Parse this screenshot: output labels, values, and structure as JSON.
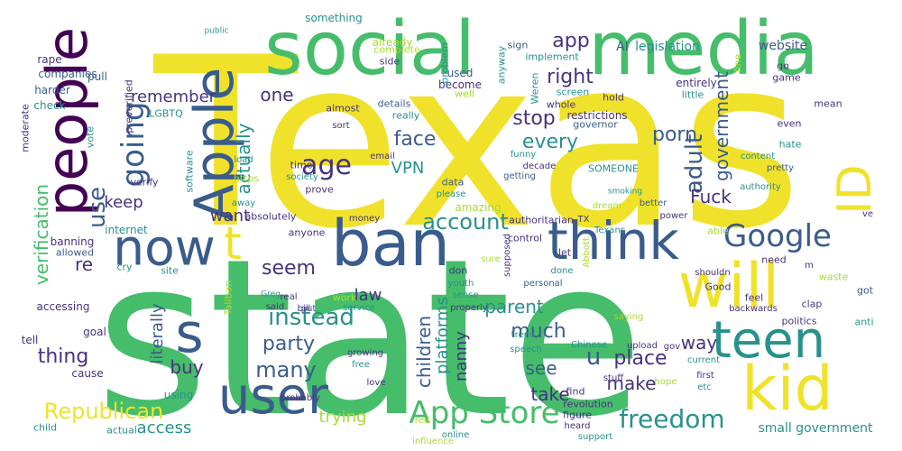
{
  "palette": {
    "yellow": "#f0e22a",
    "green": "#45bd6a",
    "teal": "#28918d",
    "blue": "#3a5c8c",
    "indigo": "#47327f",
    "purple": "#440154",
    "lime": "#a8db34"
  },
  "words": [
    {
      "text": "Texas",
      "color": "#f0e22a"
    },
    {
      "text": "state",
      "color": "#45bd6a"
    },
    {
      "text": "social",
      "color": "#45bd6a"
    },
    {
      "text": "media",
      "color": "#45bd6a"
    },
    {
      "text": "people",
      "color": "#440154"
    },
    {
      "text": "Apple",
      "color": "#3a5c8c"
    },
    {
      "text": "now",
      "color": "#3a5c8c"
    },
    {
      "text": "ban",
      "color": "#3a5c8c"
    },
    {
      "text": "think",
      "color": "#3a5c8c"
    },
    {
      "text": "will",
      "color": "#f0e22a"
    },
    {
      "text": "kid",
      "color": "#f0e22a"
    },
    {
      "text": "teen",
      "color": "#28918d"
    },
    {
      "text": "user",
      "color": "#3a5c8c"
    },
    {
      "text": "App Store",
      "color": "#45bd6a"
    },
    {
      "text": "Google",
      "color": "#3a5c8c"
    },
    {
      "text": "ID",
      "color": "#f0e22a"
    },
    {
      "text": "s",
      "color": "#3a5c8c"
    },
    {
      "text": "t",
      "color": "#f0e22a"
    },
    {
      "text": "going",
      "color": "#3a5c8c"
    },
    {
      "text": "freedom",
      "color": "#28918d"
    },
    {
      "text": "Republican",
      "color": "#f0e22a"
    },
    {
      "text": "age",
      "color": "#47327f"
    },
    {
      "text": "account",
      "color": "#28918d"
    },
    {
      "text": "porn",
      "color": "#3a5c8c"
    },
    {
      "text": "adult",
      "color": "#3a5c8c"
    },
    {
      "text": "use",
      "color": "#3a5c8c"
    },
    {
      "text": "instead",
      "color": "#28918d"
    },
    {
      "text": "party",
      "color": "#3a5c8c"
    },
    {
      "text": "many",
      "color": "#3a5c8c"
    },
    {
      "text": "much",
      "color": "#3a5c8c"
    },
    {
      "text": "thing",
      "color": "#47327f"
    },
    {
      "text": "seem",
      "color": "#47327f"
    },
    {
      "text": "actually",
      "color": "#28918d"
    },
    {
      "text": "stop",
      "color": "#47327f"
    },
    {
      "text": "every",
      "color": "#28918d"
    },
    {
      "text": "face",
      "color": "#3a5c8c"
    },
    {
      "text": "government",
      "color": "#3a5c8c"
    },
    {
      "text": "right",
      "color": "#47327f"
    },
    {
      "text": "app",
      "color": "#47327f"
    },
    {
      "text": "remember",
      "color": "#47327f"
    },
    {
      "text": "one",
      "color": "#47327f"
    },
    {
      "text": "verification",
      "color": "#45bd6a"
    },
    {
      "text": "literally",
      "color": "#3a5c8c"
    },
    {
      "text": "children",
      "color": "#3a5c8c"
    },
    {
      "text": "platforms",
      "color": "#28918d"
    },
    {
      "text": "nanny",
      "color": "#47327f"
    },
    {
      "text": "parent",
      "color": "#28918d"
    },
    {
      "text": "place",
      "color": "#47327f"
    },
    {
      "text": "u",
      "color": "#3a5c8c"
    },
    {
      "text": "way",
      "color": "#47327f"
    },
    {
      "text": "Fuck",
      "color": "#47327f"
    },
    {
      "text": "make",
      "color": "#47327f"
    },
    {
      "text": "take",
      "color": "#47327f"
    },
    {
      "text": "see",
      "color": "#3a5c8c"
    },
    {
      "text": "buy",
      "color": "#47327f"
    },
    {
      "text": "access",
      "color": "#28918d"
    },
    {
      "text": "trying",
      "color": "#a8db34"
    },
    {
      "text": "want",
      "color": "#47327f"
    },
    {
      "text": "keep",
      "color": "#47327f"
    },
    {
      "text": "VPN",
      "color": "#28918d"
    },
    {
      "text": "law",
      "color": "#47327f"
    },
    {
      "text": "re",
      "color": "#47327f"
    },
    {
      "text": "small government",
      "color": "#28918d"
    },
    {
      "text": "legislation",
      "color": "#28918d"
    },
    {
      "text": "website",
      "color": "#3a5c8c"
    },
    {
      "text": "AI",
      "color": "#3a5c8c"
    },
    {
      "text": "something",
      "color": "#28918d"
    },
    {
      "text": "already",
      "color": "#a8db34"
    },
    {
      "text": "companies",
      "color": "#3a5c8c"
    },
    {
      "text": "rape",
      "color": "#47327f"
    },
    {
      "text": "harder",
      "color": "#3a5c8c"
    },
    {
      "text": "pull",
      "color": "#3a5c8c"
    },
    {
      "text": "check",
      "color": "#28918d"
    },
    {
      "text": "LGBTQ",
      "color": "#28918d"
    },
    {
      "text": "preverified",
      "color": "#47327f"
    },
    {
      "text": "moderate",
      "color": "#47327f"
    },
    {
      "text": "vote",
      "color": "#28918d"
    },
    {
      "text": "verify",
      "color": "#47327f"
    },
    {
      "text": "software",
      "color": "#28918d"
    },
    {
      "text": "https",
      "color": "#a8db34"
    },
    {
      "text": "internet",
      "color": "#28918d"
    },
    {
      "text": "banning",
      "color": "#47327f"
    },
    {
      "text": "allowed",
      "color": "#3a5c8c"
    },
    {
      "text": "cry",
      "color": "#28918d"
    },
    {
      "text": "site",
      "color": "#28918d"
    },
    {
      "text": "Taliban",
      "color": "#a8db34"
    },
    {
      "text": "accessing",
      "color": "#47327f"
    },
    {
      "text": "goal",
      "color": "#47327f"
    },
    {
      "text": "tell",
      "color": "#47327f"
    },
    {
      "text": "cause",
      "color": "#47327f"
    },
    {
      "text": "using",
      "color": "#28918d"
    },
    {
      "text": "child",
      "color": "#28918d"
    },
    {
      "text": "actual",
      "color": "#28918d"
    },
    {
      "text": "almost",
      "color": "#47327f"
    },
    {
      "text": "details",
      "color": "#3a5c8c"
    },
    {
      "text": "really",
      "color": "#28918d"
    },
    {
      "text": "become",
      "color": "#47327f"
    },
    {
      "text": "used",
      "color": "#3a5c8c"
    },
    {
      "text": "problem",
      "color": "#28918d"
    },
    {
      "text": "complete",
      "color": "#a8db34"
    },
    {
      "text": "side",
      "color": "#47327f"
    },
    {
      "text": "anyway",
      "color": "#28918d"
    },
    {
      "text": "implement",
      "color": "#28918d"
    },
    {
      "text": "sign",
      "color": "#3a5c8c"
    },
    {
      "text": "screen",
      "color": "#28918d"
    },
    {
      "text": "Weren",
      "color": "#28918d"
    },
    {
      "text": "well",
      "color": "#a8db34"
    },
    {
      "text": "whole",
      "color": "#47327f"
    },
    {
      "text": "restrictions",
      "color": "#47327f"
    },
    {
      "text": "governor",
      "color": "#3a5c8c"
    },
    {
      "text": "hold",
      "color": "#47327f"
    },
    {
      "text": "entirely",
      "color": "#47327f"
    },
    {
      "text": "little",
      "color": "#28918d"
    },
    {
      "text": "even",
      "color": "#47327f"
    },
    {
      "text": "hate",
      "color": "#28918d"
    },
    {
      "text": "go",
      "color": "#47327f"
    },
    {
      "text": "game",
      "color": "#47327f"
    },
    {
      "text": "fine",
      "color": "#a8db34"
    },
    {
      "text": "mean",
      "color": "#47327f"
    },
    {
      "text": "public",
      "color": "#28918d"
    },
    {
      "text": "email",
      "color": "#47327f"
    },
    {
      "text": "load",
      "color": "#28918d"
    },
    {
      "text": "time",
      "color": "#47327f"
    },
    {
      "text": "society",
      "color": "#28918d"
    },
    {
      "text": "prove",
      "color": "#47327f"
    },
    {
      "text": "data",
      "color": "#3a5c8c"
    },
    {
      "text": "please",
      "color": "#28918d"
    },
    {
      "text": "getting",
      "color": "#3a5c8c"
    },
    {
      "text": "funny",
      "color": "#28918d"
    },
    {
      "text": "decade",
      "color": "#47327f"
    },
    {
      "text": "SOMEONE",
      "color": "#28918d"
    },
    {
      "text": "smoking",
      "color": "#28918d"
    },
    {
      "text": "better",
      "color": "#3a5c8c"
    },
    {
      "text": "dream",
      "color": "#a8db34"
    },
    {
      "text": "content",
      "color": "#28918d"
    },
    {
      "text": "pretty",
      "color": "#3a5c8c"
    },
    {
      "text": "authority",
      "color": "#28918d"
    },
    {
      "text": "sort",
      "color": "#47327f"
    },
    {
      "text": "amazing",
      "color": "#a8db34"
    },
    {
      "text": "authoritarian",
      "color": "#47327f"
    },
    {
      "text": "absolutely",
      "color": "#47327f"
    },
    {
      "text": "money",
      "color": "#47327f"
    },
    {
      "text": "away",
      "color": "#28918d"
    },
    {
      "text": "able",
      "color": "#a8db34"
    },
    {
      "text": "power",
      "color": "#47327f"
    },
    {
      "text": "TX",
      "color": "#47327f"
    },
    {
      "text": "Texans",
      "color": "#28918d"
    },
    {
      "text": "control",
      "color": "#47327f"
    },
    {
      "text": "supposed",
      "color": "#47327f"
    },
    {
      "text": "anyone",
      "color": "#47327f"
    },
    {
      "text": "don",
      "color": "#47327f"
    },
    {
      "text": "let",
      "color": "#47327f"
    },
    {
      "text": "done",
      "color": "#28918d"
    },
    {
      "text": "sure",
      "color": "#a8db34"
    },
    {
      "text": "Abbott",
      "color": "#a8db34"
    },
    {
      "text": "ve",
      "color": "#47327f"
    },
    {
      "text": "bill",
      "color": "#47327f"
    },
    {
      "text": "real",
      "color": "#47327f"
    },
    {
      "text": "put",
      "color": "#3a5c8c"
    },
    {
      "text": "said",
      "color": "#47327f"
    },
    {
      "text": "Greg",
      "color": "#28918d"
    },
    {
      "text": "work",
      "color": "#a8db34"
    },
    {
      "text": "youth",
      "color": "#28918d"
    },
    {
      "text": "sense",
      "color": "#28918d"
    },
    {
      "text": "service",
      "color": "#28918d"
    },
    {
      "text": "properly",
      "color": "#47327f"
    },
    {
      "text": "personal",
      "color": "#3a5c8c"
    },
    {
      "text": "saying",
      "color": "#a8db34"
    },
    {
      "text": "need",
      "color": "#47327f"
    },
    {
      "text": "Good",
      "color": "#47327f"
    },
    {
      "text": "shouldn",
      "color": "#47327f"
    },
    {
      "text": "waste",
      "color": "#a8db34"
    },
    {
      "text": "m",
      "color": "#47327f"
    },
    {
      "text": "got",
      "color": "#3a5c8c"
    },
    {
      "text": "feel",
      "color": "#47327f"
    },
    {
      "text": "clap",
      "color": "#47327f"
    },
    {
      "text": "politics",
      "color": "#47327f"
    },
    {
      "text": "anti",
      "color": "#28918d"
    },
    {
      "text": "backwards",
      "color": "#47327f"
    },
    {
      "text": "growing",
      "color": "#47327f"
    },
    {
      "text": "free",
      "color": "#28918d"
    },
    {
      "text": "speech",
      "color": "#28918d"
    },
    {
      "text": "trend",
      "color": "#28918d"
    },
    {
      "text": "Chinese",
      "color": "#28918d"
    },
    {
      "text": "upload",
      "color": "#47327f"
    },
    {
      "text": "gov",
      "color": "#47327f"
    },
    {
      "text": "current",
      "color": "#28918d"
    },
    {
      "text": "first",
      "color": "#47327f"
    },
    {
      "text": "love",
      "color": "#47327f"
    },
    {
      "text": "probably",
      "color": "#47327f"
    },
    {
      "text": "stuff",
      "color": "#47327f"
    },
    {
      "text": "hope",
      "color": "#a8db34"
    },
    {
      "text": "etc",
      "color": "#28918d"
    },
    {
      "text": "find",
      "color": "#47327f"
    },
    {
      "text": "revolution",
      "color": "#47327f"
    },
    {
      "text": "figure",
      "color": "#47327f"
    },
    {
      "text": "heard",
      "color": "#47327f"
    },
    {
      "text": "support",
      "color": "#28918d"
    },
    {
      "text": "red",
      "color": "#a8db34"
    },
    {
      "text": "online",
      "color": "#28918d"
    },
    {
      "text": "influence",
      "color": "#a8db34"
    }
  ]
}
